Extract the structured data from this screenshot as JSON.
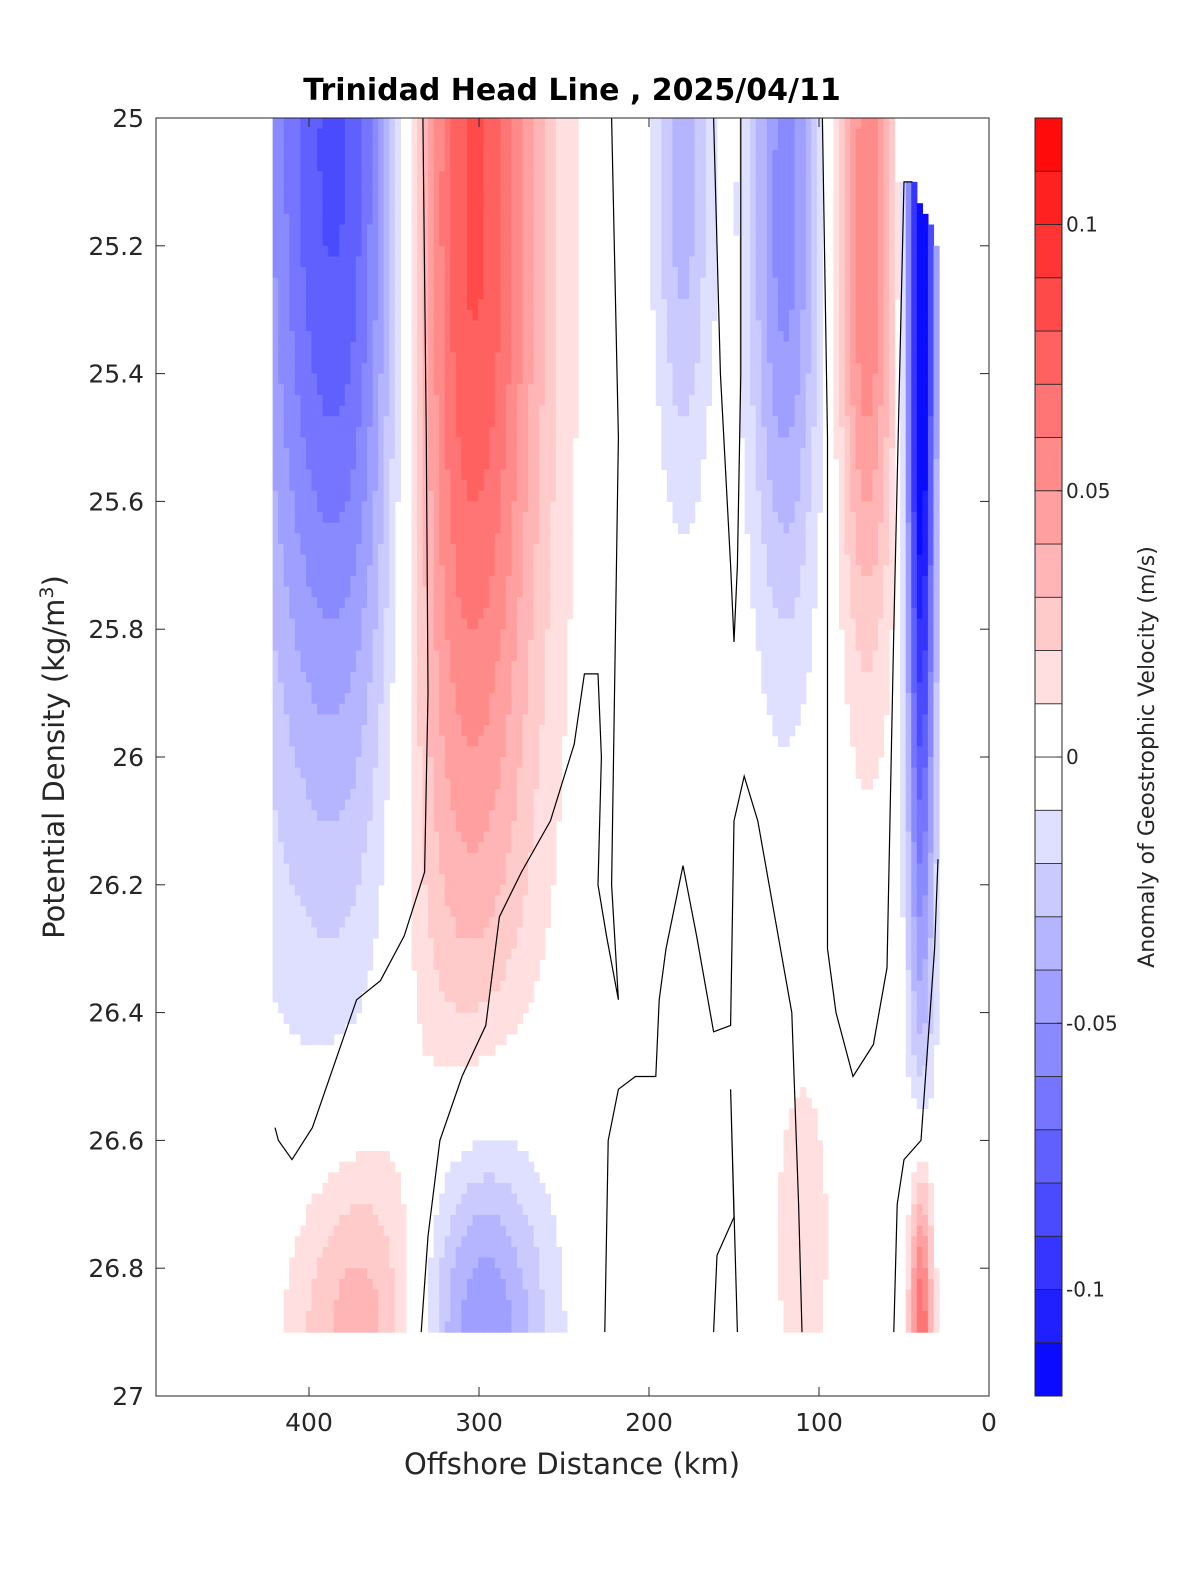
{
  "chart_data": {
    "type": "contour",
    "title": "Trinidad Head Line , 2025/04/11",
    "xlabel": "Offshore Distance (km)",
    "ylabel_main": "Potential Density (kg/m",
    "ylabel_sup": "3",
    "ylabel_close": ")",
    "xlim": [
      490,
      0
    ],
    "ylim": [
      27,
      25
    ],
    "x_reversed": true,
    "y_reversed": true,
    "x_ticks": [
      400,
      300,
      200,
      100,
      0
    ],
    "y_ticks": [
      25,
      25.2,
      25.4,
      25.6,
      25.8,
      26,
      26.2,
      26.4,
      26.6,
      26.8,
      27
    ],
    "colorbar": {
      "label": "Anomaly of Geostrophic Velocity (m/s)",
      "range": [
        -0.12,
        0.12
      ],
      "step": 0.01,
      "ticks": [
        0.1,
        0.05,
        0,
        -0.05,
        -0.1
      ],
      "tick_labels": [
        "0.1",
        "0.05",
        "0",
        "-0.05",
        "-0.1"
      ],
      "colormap": "blue-white-red"
    },
    "anomaly_features": [
      {
        "type": "negative",
        "x_center": 378,
        "sigma_x": 40,
        "y_center": 25.05,
        "sigma_y": 0.75,
        "peak": -0.09
      },
      {
        "type": "positive",
        "x_center": 310,
        "sigma_x": 32,
        "y_center": 25.1,
        "sigma_y": 0.85,
        "peak": 0.1
      },
      {
        "type": "negative",
        "x_center": 180,
        "sigma_x": 12,
        "y_center": 25.1,
        "sigma_y": 0.35,
        "peak": -0.035
      },
      {
        "type": "negative",
        "x_center": 120,
        "sigma_x": 15,
        "y_center": 25.15,
        "sigma_y": 0.45,
        "peak": -0.055
      },
      {
        "type": "positive",
        "x_center": 72,
        "sigma_x": 12,
        "y_center": 25.2,
        "sigma_y": 0.45,
        "peak": 0.06
      },
      {
        "type": "negative",
        "x_center": 40,
        "sigma_x": 6,
        "y_center": 25.3,
        "sigma_y": 0.7,
        "peak": -0.13
      },
      {
        "type": "positive",
        "x_center": 370,
        "sigma_x": 30,
        "y_center": 26.9,
        "sigma_y": 0.22,
        "peak": 0.04
      },
      {
        "type": "negative",
        "x_center": 300,
        "sigma_x": 28,
        "y_center": 26.9,
        "sigma_y": 0.25,
        "peak": -0.06
      },
      {
        "type": "positive",
        "x_center": 110,
        "sigma_x": 12,
        "y_center": 26.75,
        "sigma_y": 0.2,
        "peak": 0.02
      },
      {
        "type": "positive",
        "x_center": 40,
        "sigma_x": 5,
        "y_center": 26.9,
        "sigma_y": 0.2,
        "peak": 0.08
      }
    ],
    "zero_contours": [
      [
        [
          420,
          26.58
        ],
        [
          418,
          26.6
        ],
        [
          410,
          26.63
        ],
        [
          398,
          26.58
        ],
        [
          385,
          26.48
        ],
        [
          372,
          26.38
        ],
        [
          358,
          26.35
        ],
        [
          344,
          26.28
        ],
        [
          332,
          26.18
        ],
        [
          330,
          25.9
        ],
        [
          331,
          25.5
        ],
        [
          333,
          25.0
        ]
      ],
      [
        [
          334,
          26.9
        ],
        [
          330,
          26.75
        ],
        [
          323,
          26.6
        ],
        [
          310,
          26.5
        ],
        [
          296,
          26.42
        ],
        [
          288,
          26.25
        ],
        [
          275,
          26.18
        ],
        [
          258,
          26.1
        ],
        [
          244,
          25.98
        ],
        [
          238,
          25.87
        ],
        [
          230,
          25.87
        ],
        [
          228,
          26.0
        ],
        [
          230,
          26.2
        ],
        [
          225,
          26.28
        ],
        [
          218,
          26.38
        ],
        [
          222,
          26.2
        ],
        [
          218,
          25.5
        ],
        [
          222,
          25.0
        ]
      ],
      [
        [
          226,
          26.9
        ],
        [
          224,
          26.6
        ],
        [
          218,
          26.52
        ],
        [
          208,
          26.5
        ],
        [
          196,
          26.5
        ],
        [
          194,
          26.38
        ],
        [
          190,
          26.3
        ],
        [
          180,
          26.17
        ],
        [
          172,
          26.28
        ],
        [
          162,
          26.43
        ],
        [
          152,
          26.42
        ],
        [
          150,
          26.1
        ],
        [
          144,
          26.03
        ],
        [
          136,
          26.1
        ],
        [
          126,
          26.25
        ],
        [
          116,
          26.4
        ],
        [
          112,
          26.7
        ],
        [
          110,
          26.9
        ]
      ],
      [
        [
          162,
          26.9
        ],
        [
          160,
          26.78
        ],
        [
          150,
          26.72
        ],
        [
          152,
          26.52
        ],
        [
          148,
          26.9
        ]
      ],
      [
        [
          162,
          25.0
        ],
        [
          158,
          25.4
        ],
        [
          152,
          25.7
        ],
        [
          150,
          25.82
        ],
        [
          148,
          25.7
        ],
        [
          146,
          25.4
        ],
        [
          146,
          25.0
        ]
      ],
      [
        [
          98,
          25.0
        ],
        [
          95,
          25.5
        ],
        [
          95,
          26.3
        ],
        [
          90,
          26.4
        ],
        [
          80,
          26.5
        ],
        [
          68,
          26.45
        ],
        [
          60,
          26.33
        ],
        [
          56,
          25.8
        ],
        [
          50,
          25.1
        ],
        [
          45,
          25.1
        ]
      ],
      [
        [
          56,
          26.9
        ],
        [
          54,
          26.7
        ],
        [
          50,
          26.63
        ],
        [
          40,
          26.6
        ],
        [
          32,
          26.3
        ],
        [
          30,
          26.16
        ]
      ]
    ]
  }
}
